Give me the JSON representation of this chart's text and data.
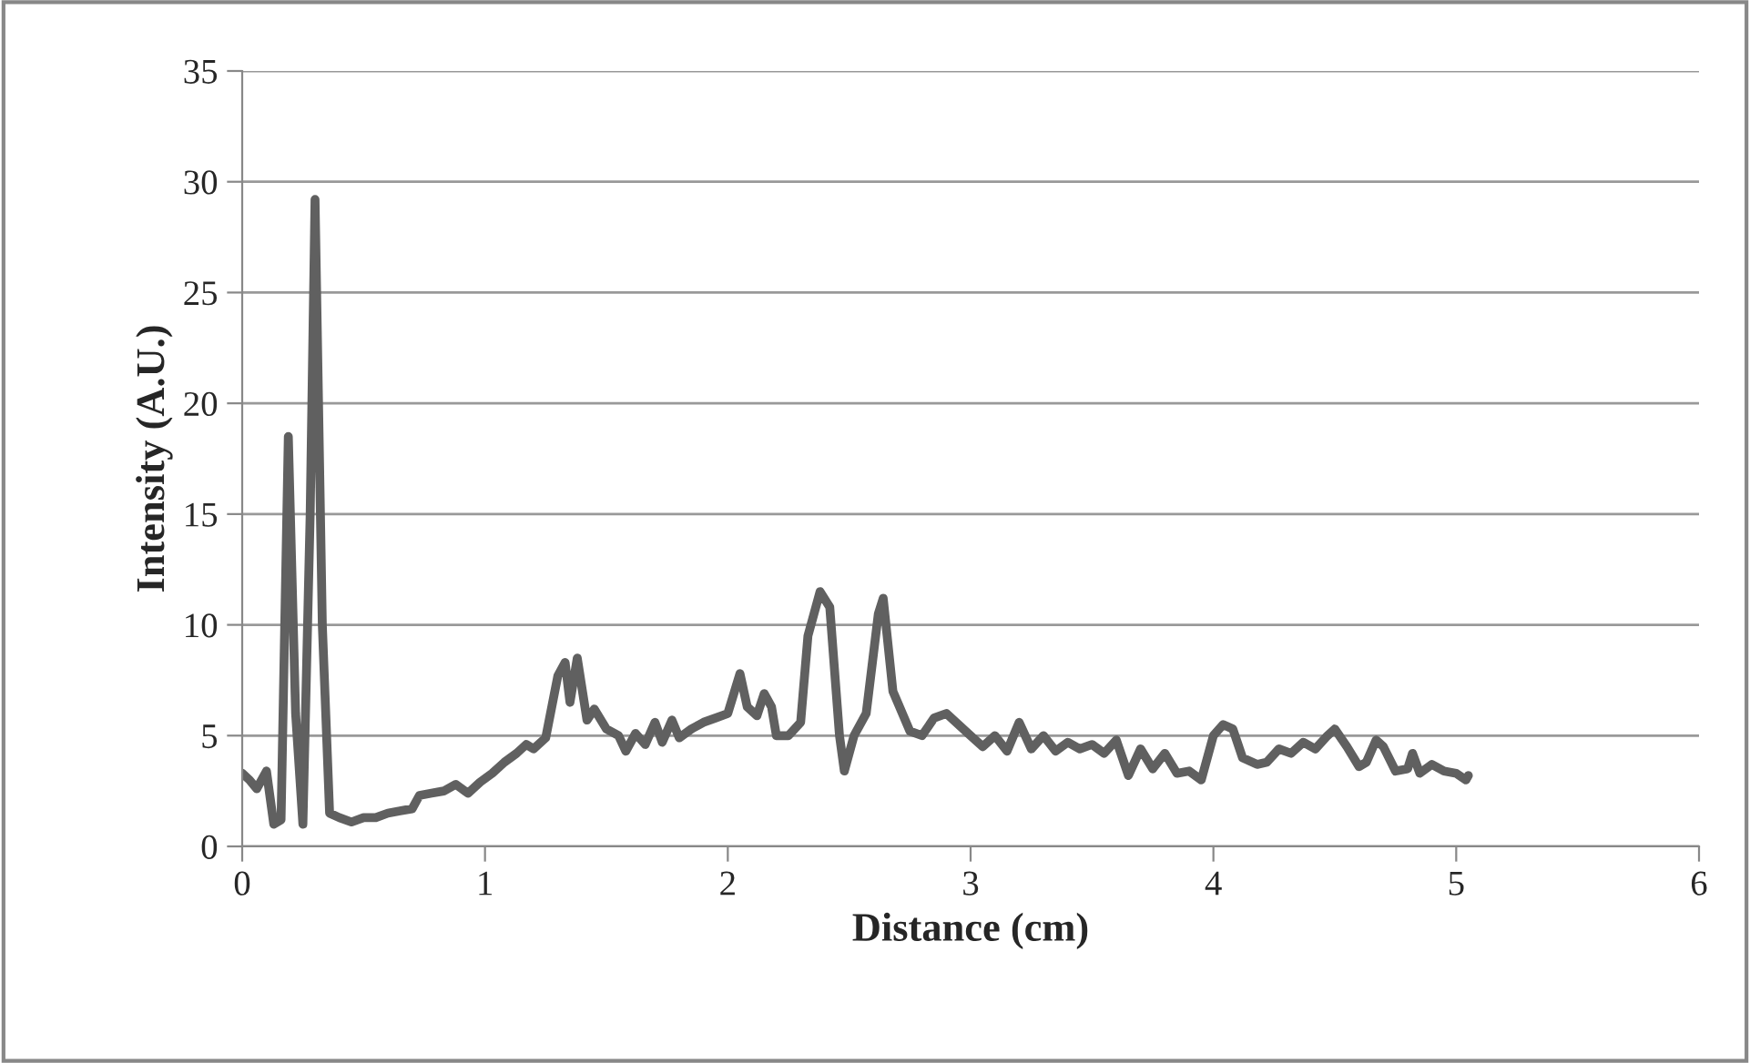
{
  "chart_data": {
    "type": "line",
    "xlabel": "Distance (cm)",
    "ylabel": "Intensity (A.U.)",
    "xlim": [
      0,
      6
    ],
    "xticks": [
      0,
      1,
      2,
      3,
      4,
      5,
      6
    ],
    "ylim": [
      0,
      35
    ],
    "yticks": [
      0,
      5,
      10,
      15,
      20,
      25,
      30,
      35
    ],
    "grid": "y",
    "legend": false,
    "marker": "none",
    "line_style": "solid",
    "series": [
      {
        "color": "#606060",
        "x": [
          0,
          0.03,
          0.06,
          0.1,
          0.13,
          0.16,
          0.19,
          0.22,
          0.25,
          0.28,
          0.3,
          0.33,
          0.36,
          0.4,
          0.45,
          0.5,
          0.55,
          0.6,
          0.65,
          0.7,
          0.73,
          0.78,
          0.83,
          0.88,
          0.93,
          0.98,
          1.03,
          1.08,
          1.13,
          1.17,
          1.2,
          1.25,
          1.3,
          1.33,
          1.35,
          1.38,
          1.42,
          1.45,
          1.5,
          1.55,
          1.58,
          1.62,
          1.66,
          1.7,
          1.73,
          1.77,
          1.8,
          1.85,
          1.9,
          1.95,
          2.0,
          2.05,
          2.08,
          2.12,
          2.15,
          2.18,
          2.2,
          2.25,
          2.3,
          2.33,
          2.38,
          2.42,
          2.46,
          2.48,
          2.52,
          2.57,
          2.62,
          2.64,
          2.68,
          2.75,
          2.8,
          2.85,
          2.9,
          2.95,
          3.0,
          3.05,
          3.1,
          3.15,
          3.2,
          3.25,
          3.3,
          3.35,
          3.4,
          3.45,
          3.5,
          3.55,
          3.6,
          3.65,
          3.7,
          3.75,
          3.8,
          3.85,
          3.9,
          3.95,
          4.0,
          4.04,
          4.08,
          4.12,
          4.18,
          4.22,
          4.27,
          4.32,
          4.37,
          4.42,
          4.47,
          4.5,
          4.55,
          4.6,
          4.63,
          4.67,
          4.7,
          4.75,
          4.8,
          4.82,
          4.85,
          4.9,
          4.95,
          5.0,
          5.04,
          5.05
        ],
        "values": [
          3.3,
          3.0,
          2.6,
          3.4,
          1.0,
          1.2,
          18.5,
          6,
          1.0,
          15,
          29.2,
          10,
          1.5,
          1.3,
          1.1,
          1.3,
          1.3,
          1.5,
          1.6,
          1.7,
          2.3,
          2.4,
          2.5,
          2.8,
          2.4,
          2.9,
          3.3,
          3.8,
          4.2,
          4.6,
          4.4,
          4.9,
          7.7,
          8.3,
          6.5,
          8.5,
          5.7,
          6.2,
          5.3,
          5.0,
          4.3,
          5.1,
          4.6,
          5.6,
          4.7,
          5.7,
          4.9,
          5.3,
          5.6,
          5.8,
          6.0,
          7.8,
          6.3,
          5.9,
          6.9,
          6.3,
          5.0,
          5.0,
          5.6,
          9.5,
          11.5,
          10.8,
          5.0,
          3.4,
          5.0,
          6.0,
          10.5,
          11.2,
          7.0,
          5.2,
          5.0,
          5.8,
          6.0,
          5.5,
          5.0,
          4.5,
          5.0,
          4.3,
          5.6,
          4.4,
          5.0,
          4.3,
          4.7,
          4.4,
          4.6,
          4.2,
          4.8,
          3.2,
          4.4,
          3.5,
          4.2,
          3.3,
          3.4,
          3.0,
          5.0,
          5.5,
          5.3,
          4.0,
          3.7,
          3.8,
          4.4,
          4.2,
          4.7,
          4.4,
          5.0,
          5.3,
          4.5,
          3.6,
          3.8,
          4.8,
          4.5,
          3.4,
          3.5,
          4.2,
          3.3,
          3.7,
          3.4,
          3.3,
          3.0,
          3.2
        ]
      }
    ]
  }
}
